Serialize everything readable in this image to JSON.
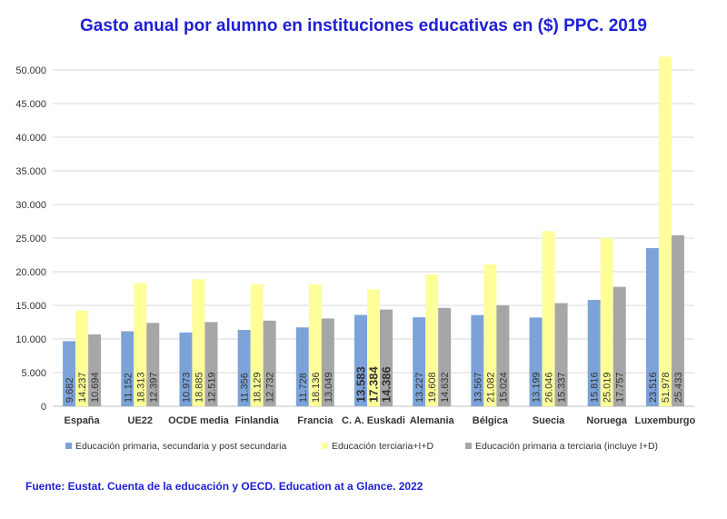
{
  "title": "Gasto anual por alumno en instituciones educativas en ($) PPC. 2019",
  "source": "Fuente: Eustat. Cuenta de la educación y OECD. Education at a Glance. 2022",
  "chart_data": {
    "type": "bar",
    "categories": [
      "España",
      "UE22",
      "OCDE media",
      "Finlandia",
      "Francia",
      "C. A. Euskadi",
      "Alemania",
      "Bélgica",
      "Suecia",
      "Noruega",
      "Luxemburgo"
    ],
    "highlight_category": "C. A. Euskadi",
    "series": [
      {
        "name": "Educación primaria, secundaria y post secundaria",
        "color": "#7ba3d8",
        "values": [
          9682,
          11152,
          10973,
          11356,
          11728,
          13583,
          13227,
          13567,
          13199,
          15816,
          23516
        ],
        "labels": [
          "9.682",
          "11.152",
          "10.973",
          "11.356",
          "11.728",
          "13.583",
          "13.227",
          "13.567",
          "13.199",
          "15.816",
          "23.516"
        ]
      },
      {
        "name": "Educación terciaria+I+D",
        "color": "#ffff99",
        "values": [
          14237,
          18313,
          18885,
          18129,
          18136,
          17384,
          19608,
          21082,
          26046,
          25019,
          51978
        ],
        "labels": [
          "14.237",
          "18.313",
          "18.885",
          "18.129",
          "18.136",
          "17.384",
          "19.608",
          "21.082",
          "26.046",
          "25.019",
          "51.978"
        ]
      },
      {
        "name": "Educación primaria a terciaria (incluye I+D)",
        "color": "#a6a6a6",
        "values": [
          10694,
          12397,
          12519,
          12732,
          13049,
          14386,
          14632,
          15024,
          15337,
          17757,
          25433
        ],
        "labels": [
          "10.694",
          "12.397",
          "12.519",
          "12.732",
          "13.049",
          "14.386",
          "14.632",
          "15.024",
          "15.337",
          "17.757",
          "25.433"
        ]
      }
    ],
    "y_ticks": [
      "0",
      "5.000",
      "10.000",
      "15.000",
      "20.000",
      "25.000",
      "30.000",
      "35.000",
      "40.000",
      "45.000",
      "50.000"
    ],
    "ylim": [
      0,
      52000
    ],
    "grid": true,
    "legend_position": "bottom"
  }
}
